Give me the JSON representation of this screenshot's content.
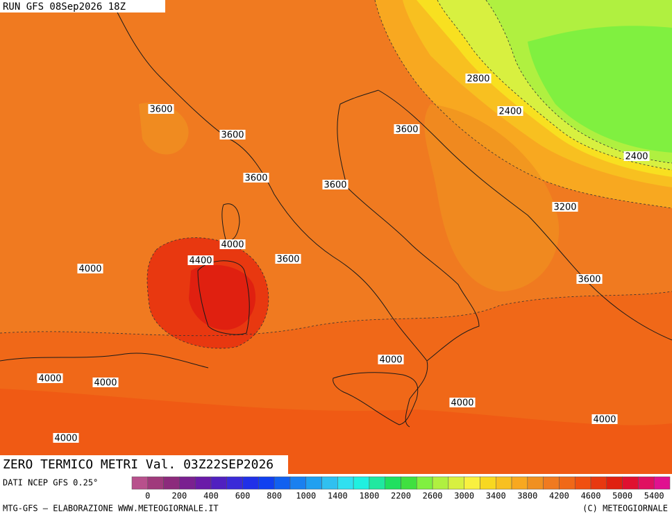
{
  "header": {
    "run": "RUN GFS 08Sep2026 18Z"
  },
  "title": "ZERO TERMICO METRI Val. 03Z22SEP2026",
  "contour_labels": [
    "3600",
    "3600",
    "3600",
    "3600",
    "3600",
    "2800",
    "2400",
    "2400",
    "3200",
    "4000",
    "4400",
    "3600",
    "4000",
    "3600",
    "4000",
    "4000",
    "4000",
    "4000",
    "4000",
    "4000"
  ],
  "colorbar": {
    "labels": [
      0,
      200,
      400,
      600,
      800,
      1000,
      1400,
      1800,
      2200,
      2600,
      3000,
      3400,
      3800,
      4200,
      4600,
      5000,
      5400
    ],
    "colors": [
      "#b8508c",
      "#a03a7c",
      "#8c2a7c",
      "#7a2090",
      "#6a1aa8",
      "#5020c0",
      "#3a2ad8",
      "#2030e8",
      "#1040f0",
      "#1060f0",
      "#1a80f0",
      "#20a0f0",
      "#30c0f0",
      "#30e0f0",
      "#20f0e0",
      "#20e8a0",
      "#20e060",
      "#40e040",
      "#80f040",
      "#b0f040",
      "#d8f040",
      "#f8f040",
      "#f8d820",
      "#f8c020",
      "#f8a820",
      "#f09020",
      "#f07a20",
      "#f06818",
      "#f05010",
      "#e83810",
      "#e02010",
      "#e01030",
      "#e01060",
      "#e01090"
    ]
  },
  "footer": {
    "source": "DATI NCEP GFS 0.25°",
    "credit": "MTG-GFS — ELABORAZIONE WWW.METEOGIORNALE.IT",
    "copyright": "(C) METEOGIORNALE"
  }
}
